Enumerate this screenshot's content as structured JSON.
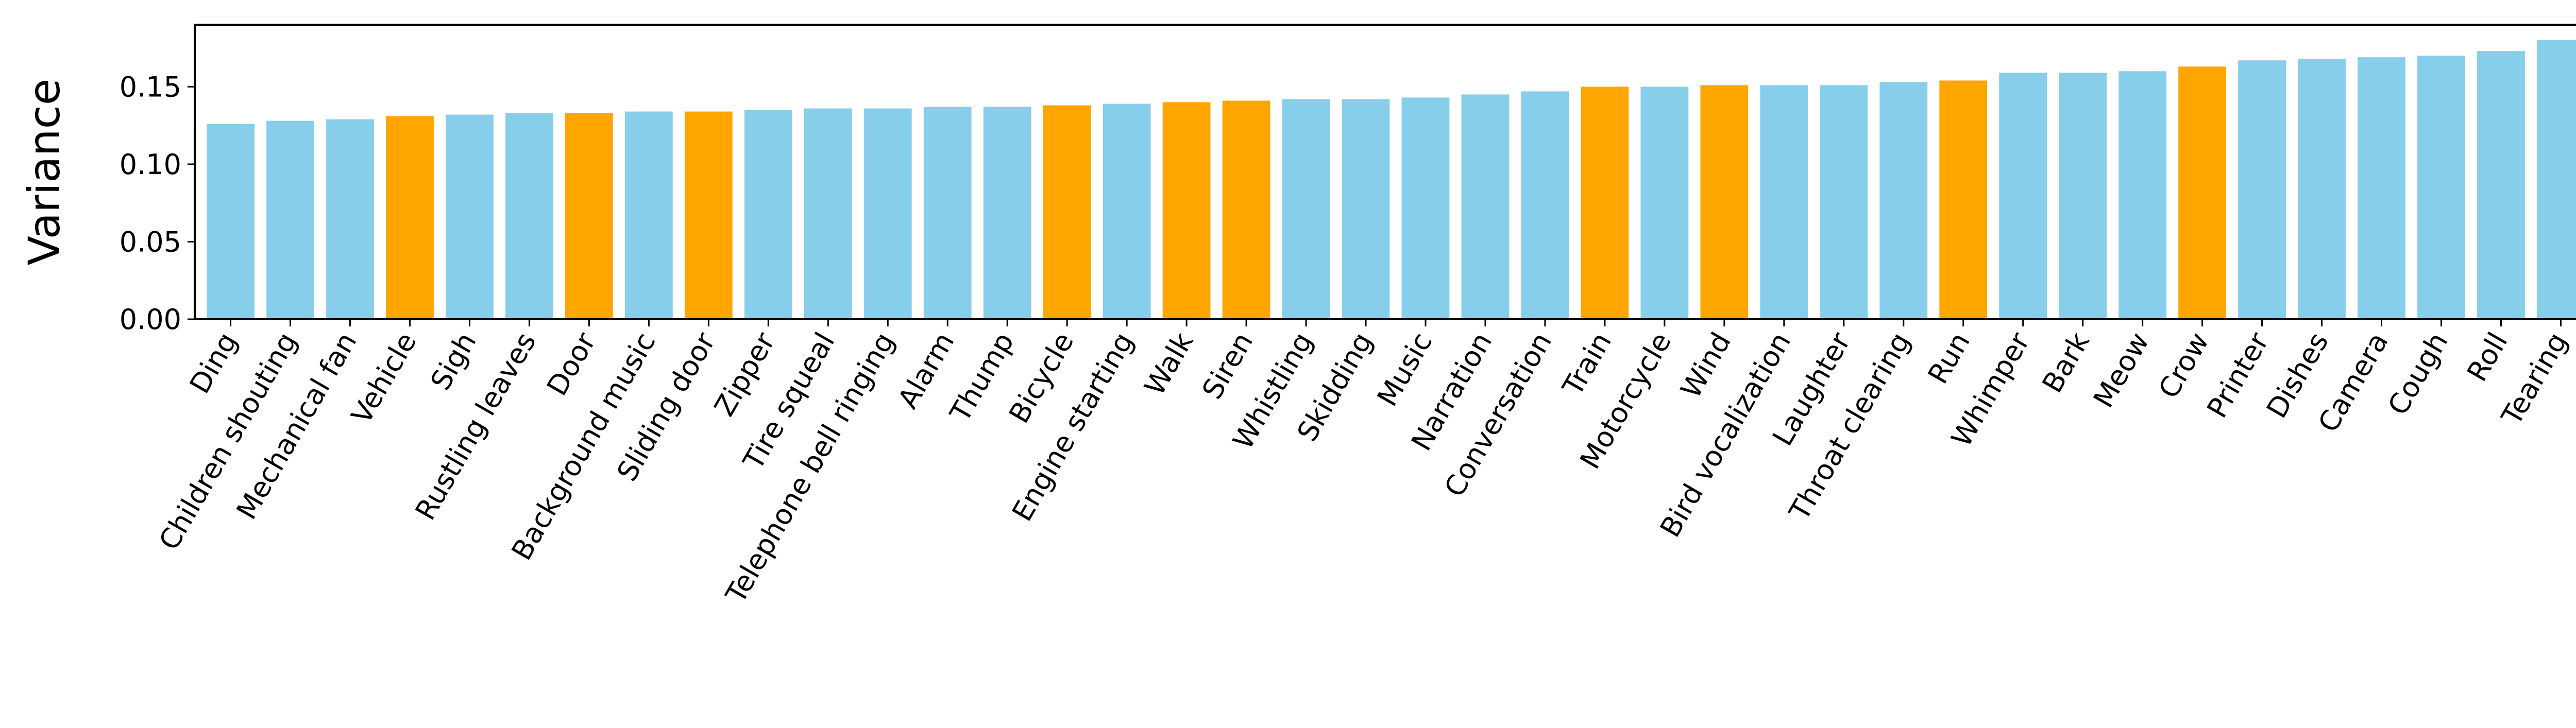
{
  "chart_data": {
    "type": "bar",
    "title": "",
    "xlabel": "",
    "ylabel": "Variance",
    "ylim": [
      0.0,
      0.19
    ],
    "yticks": [
      0.0,
      0.05,
      0.1,
      0.15
    ],
    "ytick_labels": [
      "0.00",
      "0.05",
      "0.10",
      "0.15"
    ],
    "grid": false,
    "legend": "none",
    "colors": {
      "default": "#87CEEB",
      "highlight": "#FFA500",
      "axis": "#000000"
    },
    "categories": [
      "Ding",
      "Children shouting",
      "Mechanical fan",
      "Vehicle",
      "Sigh",
      "Rustling leaves",
      "Door",
      "Background music",
      "Sliding door",
      "Zipper",
      "Tire squeal",
      "Telephone bell ringing",
      "Alarm",
      "Thump",
      "Bicycle",
      "Engine starting",
      "Walk",
      "Siren",
      "Whistling",
      "Skidding",
      "Music",
      "Narration",
      "Conversation",
      "Train",
      "Motorcycle",
      "Wind",
      "Bird vocalization",
      "Laughter",
      "Throat clearing",
      "Run",
      "Whimper",
      "Bark",
      "Meow",
      "Crow",
      "Printer",
      "Dishes",
      "Camera",
      "Cough",
      "Roll",
      "Tearing"
    ],
    "values": [
      0.126,
      0.128,
      0.129,
      0.131,
      0.132,
      0.133,
      0.133,
      0.134,
      0.134,
      0.135,
      0.136,
      0.136,
      0.137,
      0.137,
      0.138,
      0.139,
      0.14,
      0.141,
      0.142,
      0.142,
      0.143,
      0.145,
      0.147,
      0.15,
      0.15,
      0.151,
      0.151,
      0.151,
      0.153,
      0.154,
      0.159,
      0.159,
      0.16,
      0.163,
      0.167,
      0.168,
      0.169,
      0.17,
      0.173,
      0.18
    ],
    "highlighted": [
      false,
      false,
      false,
      true,
      false,
      false,
      true,
      false,
      true,
      false,
      false,
      false,
      false,
      false,
      true,
      false,
      true,
      true,
      false,
      false,
      false,
      false,
      false,
      true,
      false,
      true,
      false,
      false,
      false,
      true,
      false,
      false,
      false,
      true,
      false,
      false,
      false,
      false,
      false,
      false
    ]
  }
}
